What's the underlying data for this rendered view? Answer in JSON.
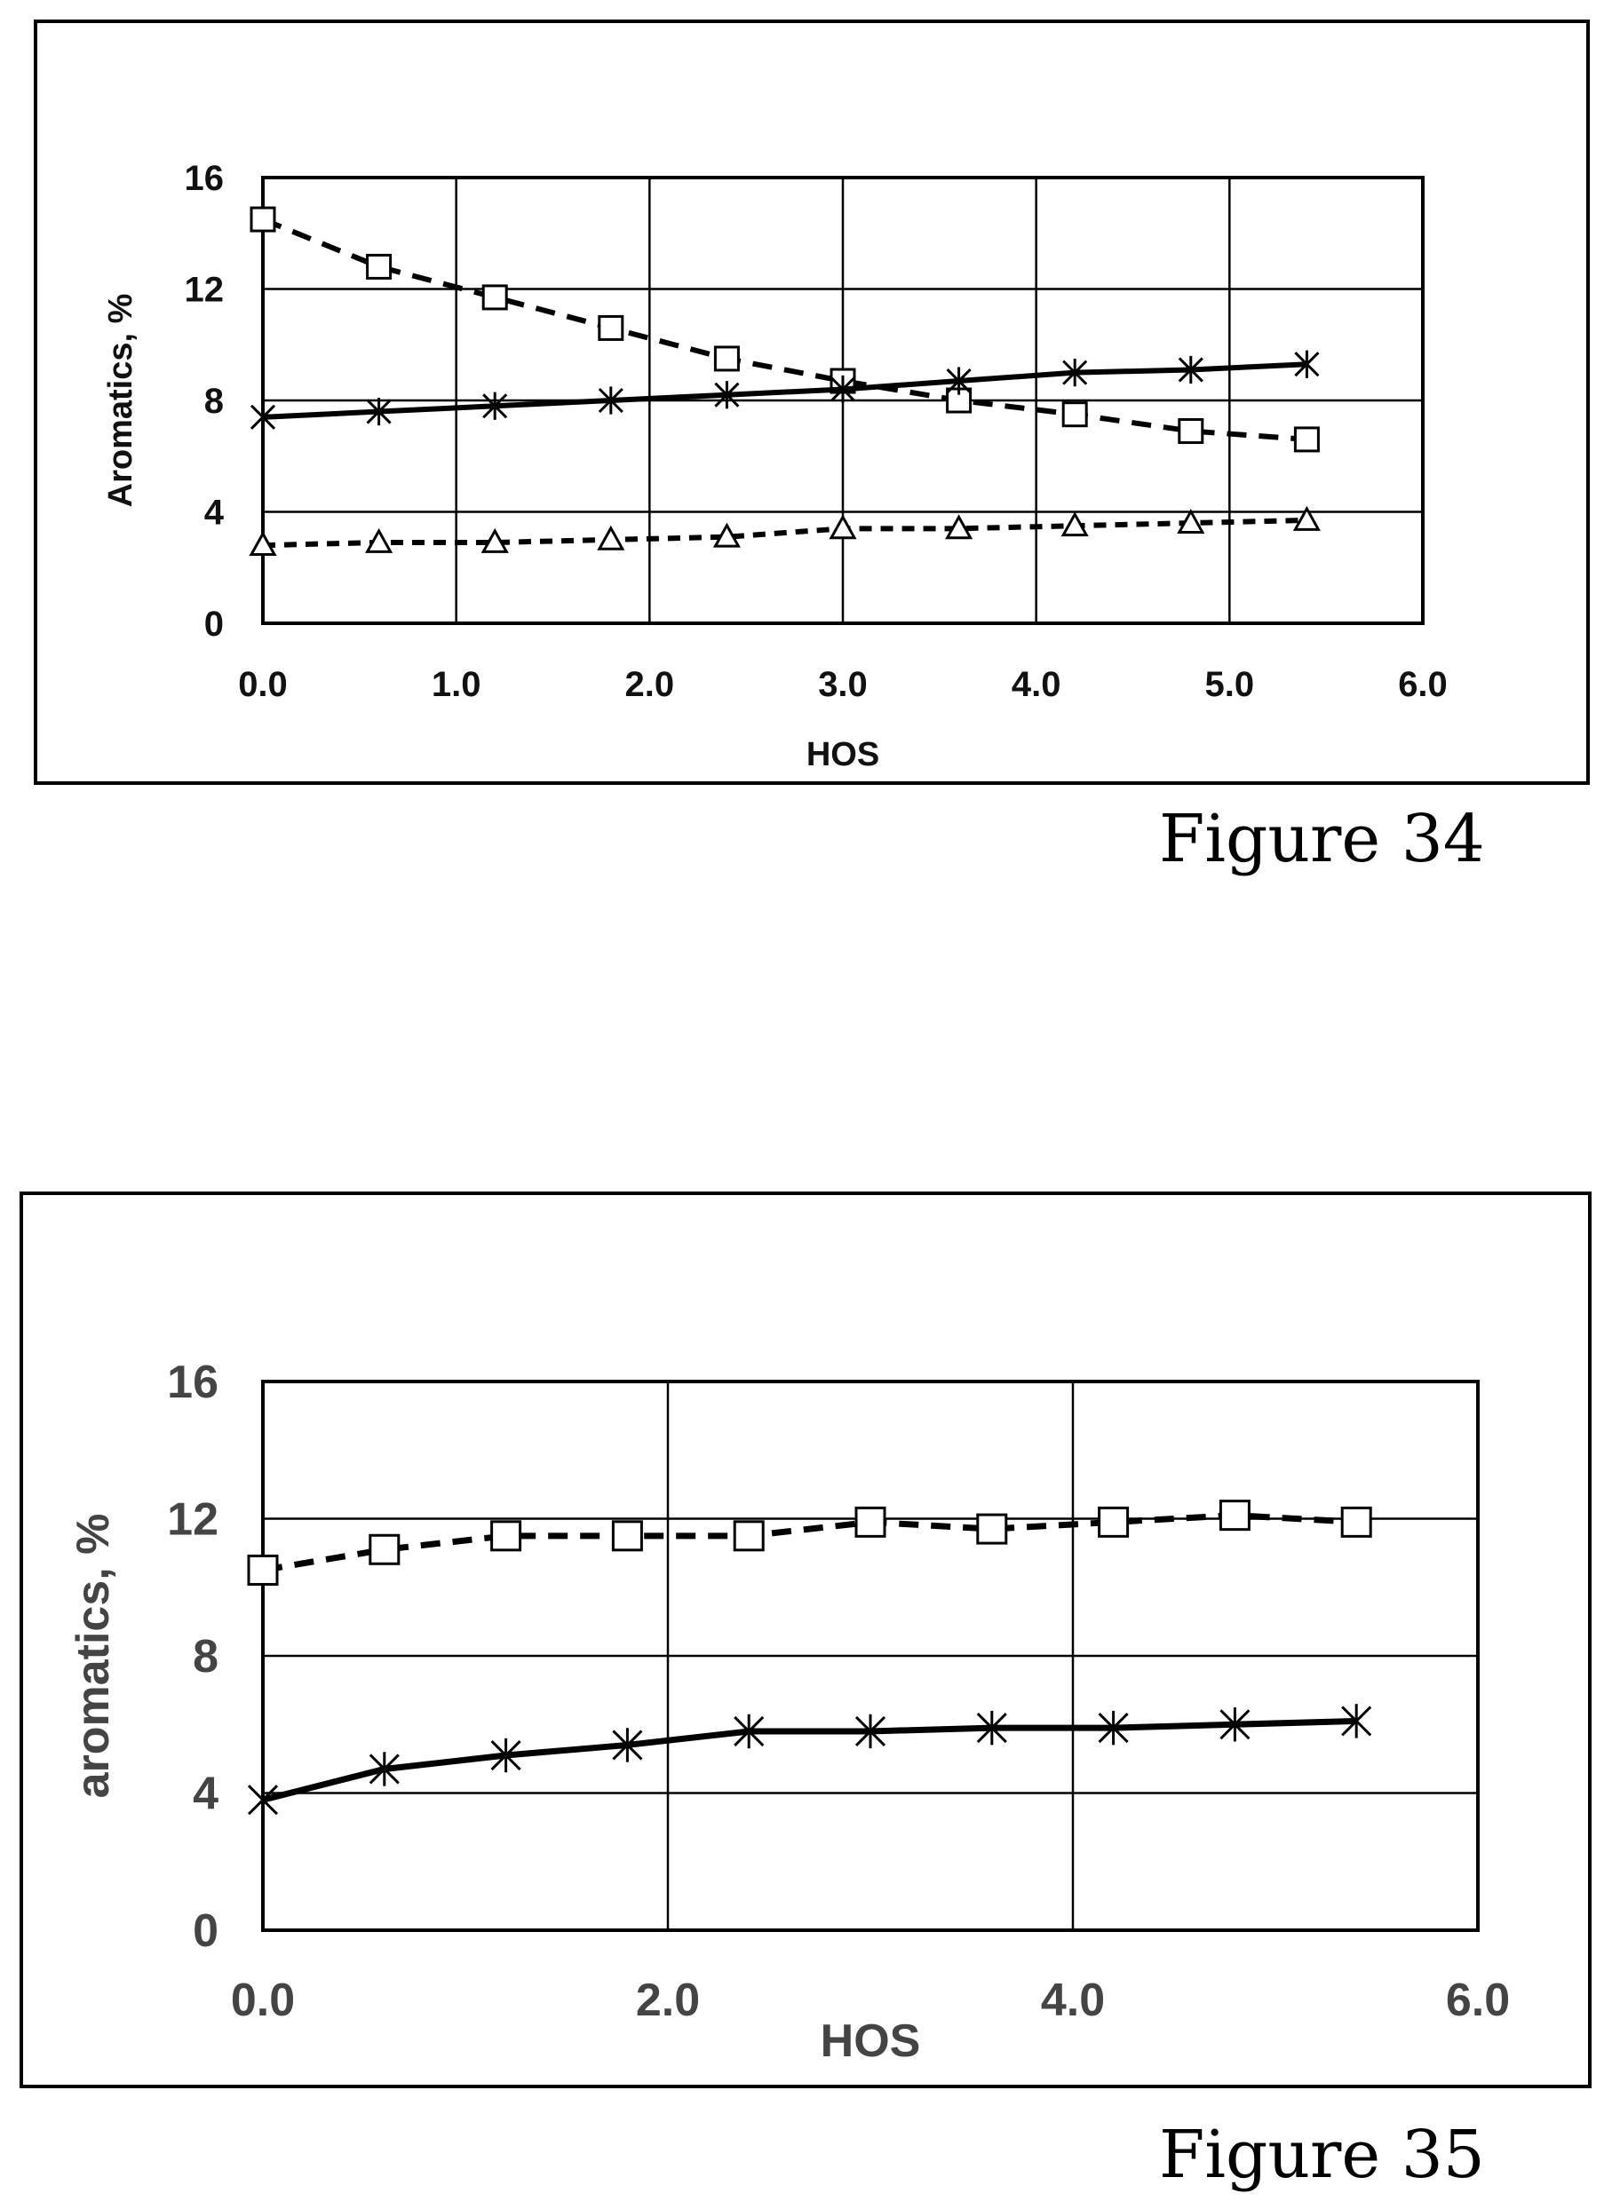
{
  "figures": {
    "fig34_caption": "Figure 34",
    "fig35_caption": "Figure 35"
  },
  "chart_data": [
    {
      "type": "line",
      "xlabel": "HOS",
      "ylabel": "Aromatics, %",
      "xlim": [
        0,
        6
      ],
      "ylim": [
        0,
        16
      ],
      "xticks": [
        "0.0",
        "1.0",
        "2.0",
        "3.0",
        "4.0",
        "5.0",
        "6.0"
      ],
      "yticks": [
        "0",
        "4",
        "8",
        "12",
        "16"
      ],
      "grid": true,
      "x": [
        0.0,
        0.6,
        1.2,
        1.8,
        2.4,
        3.0,
        3.6,
        4.2,
        4.8,
        5.4
      ],
      "series": [
        {
          "marker": "square",
          "line": "dashed",
          "values": [
            14.5,
            12.8,
            11.7,
            10.6,
            9.5,
            8.7,
            8.0,
            7.5,
            6.9,
            6.6
          ]
        },
        {
          "marker": "star",
          "line": "solid",
          "values": [
            7.4,
            7.6,
            7.8,
            8.0,
            8.2,
            8.4,
            8.7,
            9.0,
            9.1,
            9.3
          ]
        },
        {
          "marker": "triangle",
          "line": "dotted",
          "values": [
            2.8,
            2.9,
            2.9,
            3.0,
            3.1,
            3.4,
            3.4,
            3.5,
            3.6,
            3.7
          ]
        }
      ]
    },
    {
      "type": "line",
      "xlabel": "HOS",
      "ylabel": "aromatics, %",
      "xlim": [
        0,
        6
      ],
      "ylim": [
        0,
        16
      ],
      "xticks": [
        "0.0",
        "2.0",
        "4.0",
        "6.0"
      ],
      "yticks": [
        "0",
        "4",
        "8",
        "12",
        "16"
      ],
      "grid": true,
      "x": [
        0.0,
        0.6,
        1.2,
        1.8,
        2.4,
        3.0,
        3.6,
        4.2,
        4.8,
        5.4
      ],
      "series": [
        {
          "marker": "square",
          "line": "dashed",
          "values": [
            10.5,
            11.1,
            11.5,
            11.5,
            11.5,
            11.9,
            11.7,
            11.9,
            12.1,
            11.9
          ]
        },
        {
          "marker": "star",
          "line": "solid",
          "values": [
            3.8,
            4.7,
            5.1,
            5.4,
            5.8,
            5.8,
            5.9,
            5.9,
            6.0,
            6.1
          ]
        }
      ]
    }
  ]
}
